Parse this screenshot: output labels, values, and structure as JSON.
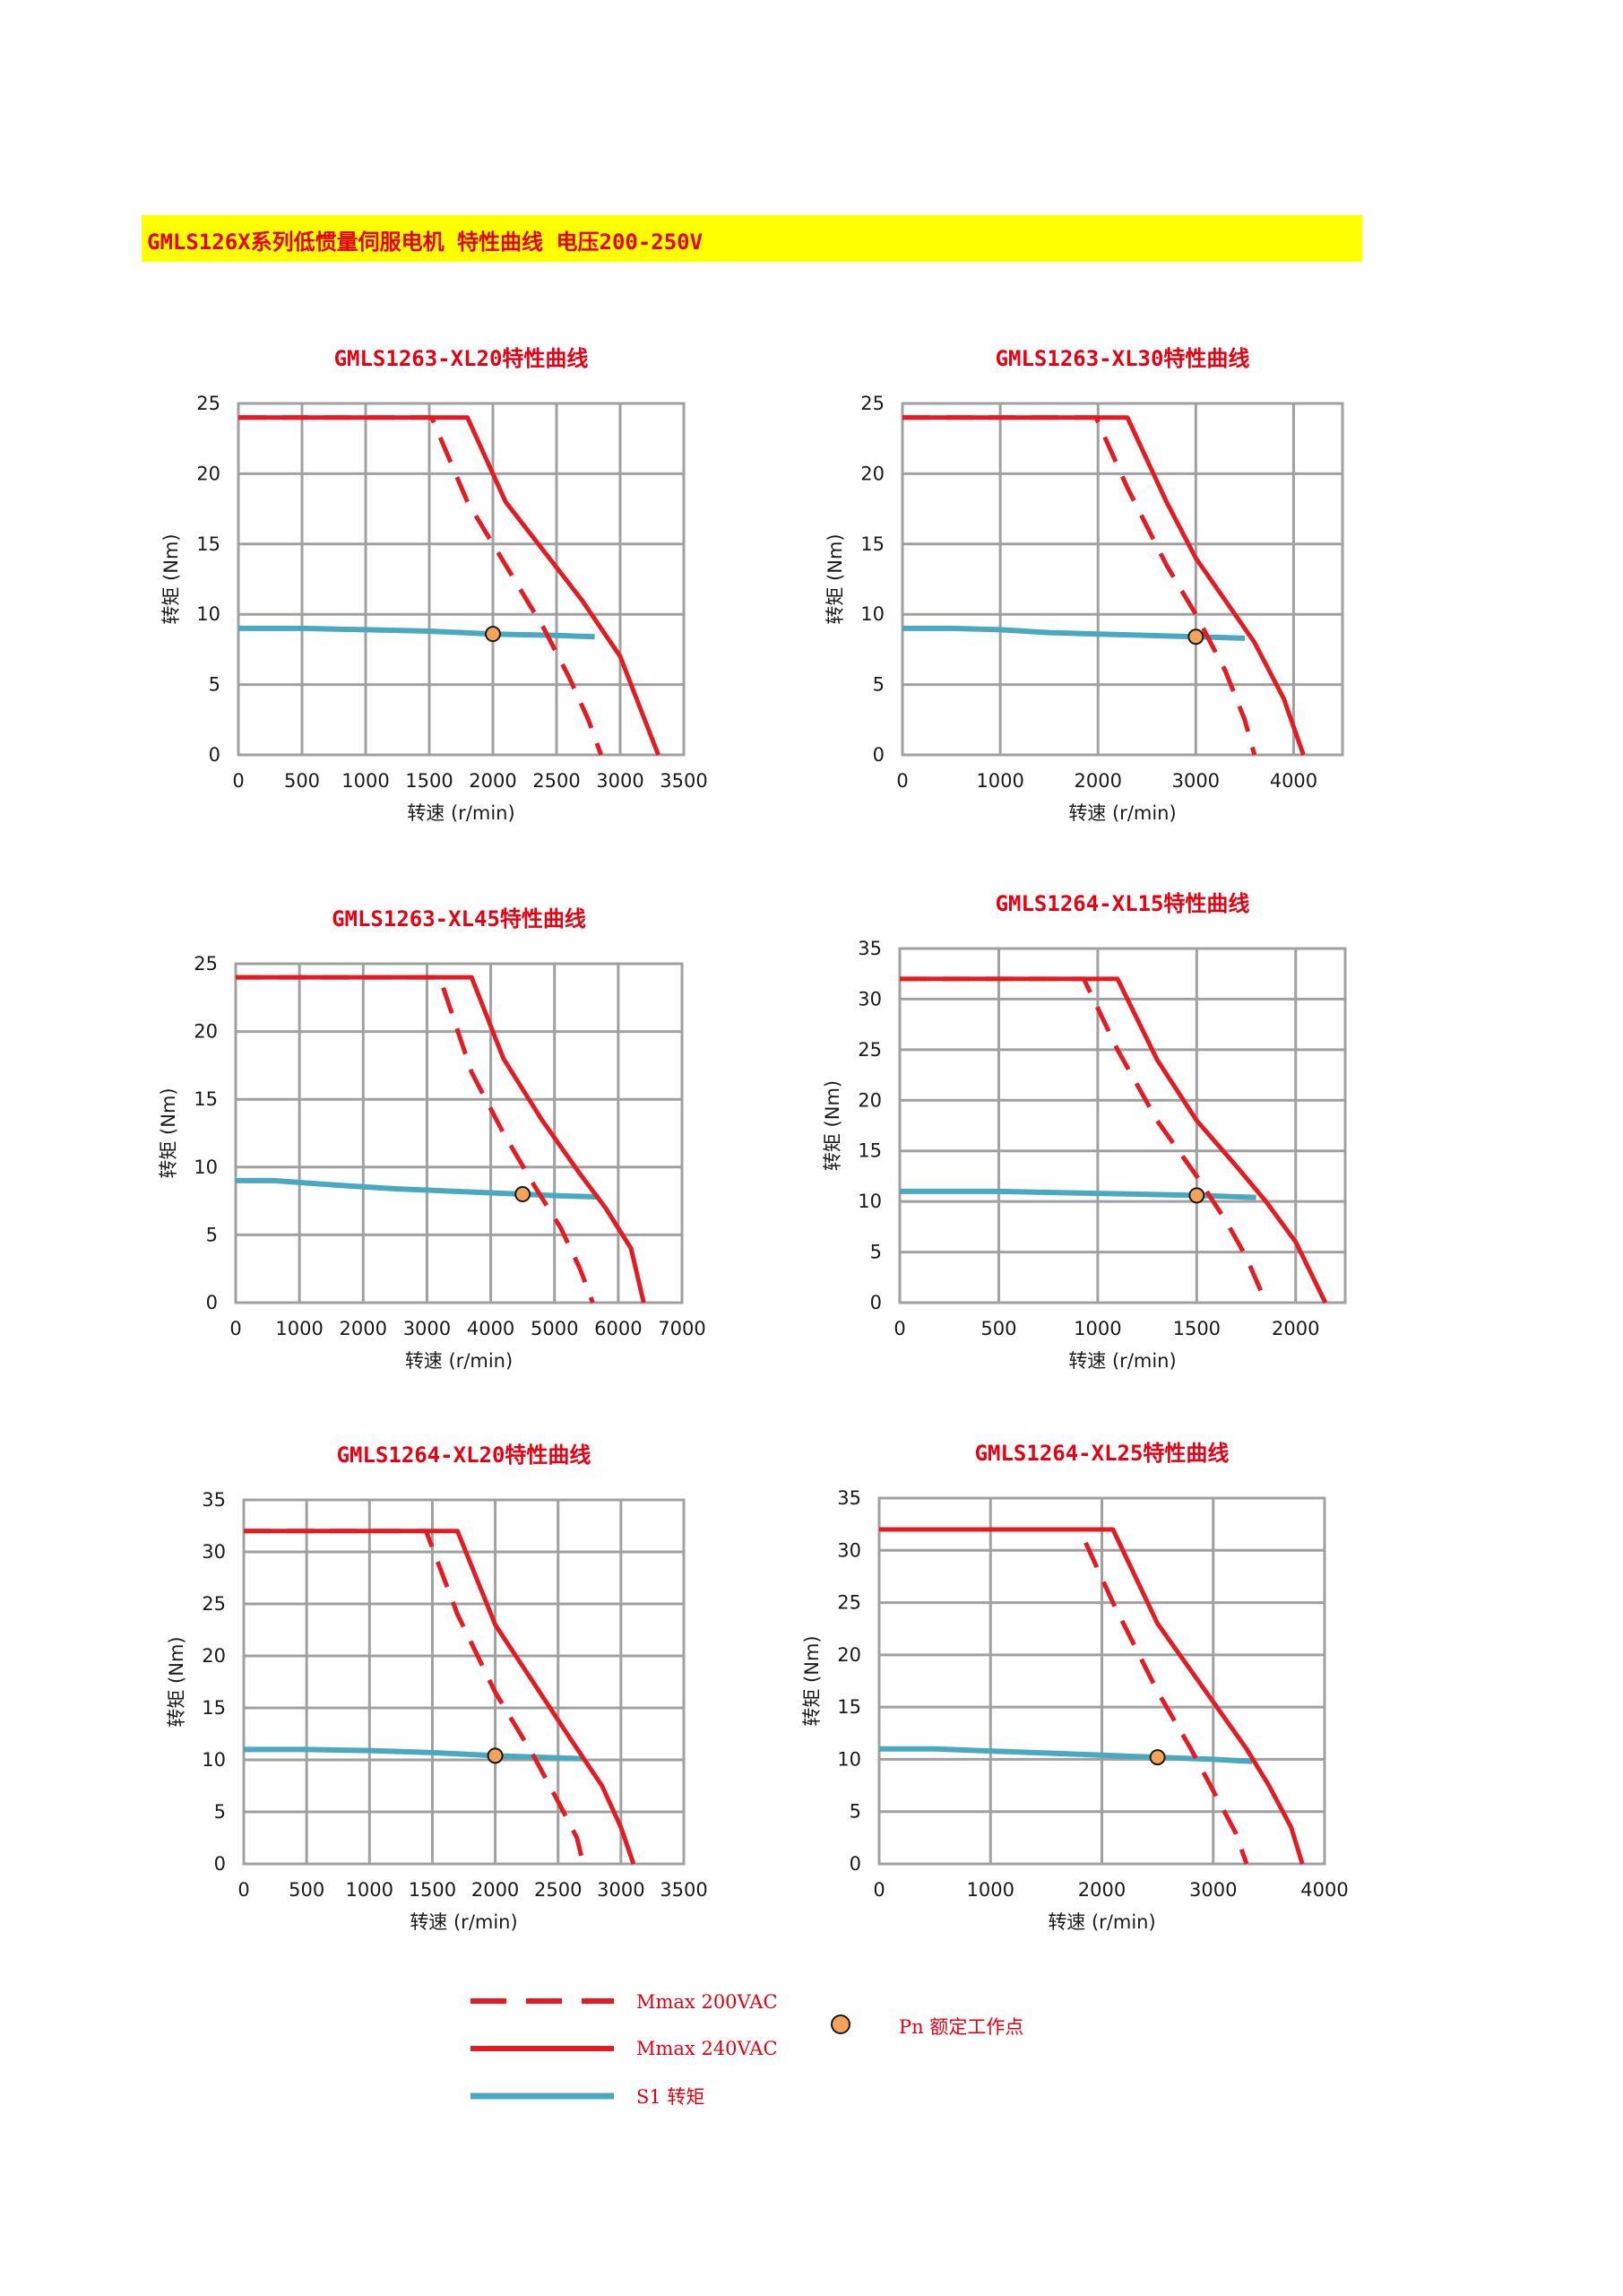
{
  "page_title": "GMLS126X系列低惯量伺服电机 特性曲线 电压200-250V",
  "colors": {
    "header_bg": "#ffff00",
    "title": "#e60012",
    "mmax": "#e31b23",
    "s1": "#4aa8c0",
    "pn_fill": "#f4a35a",
    "grid": "#a0a0a0"
  },
  "legend": {
    "mmax_200": "Mmax 200VAC",
    "mmax_240": "Mmax 240VAC",
    "s1": "S1 转矩",
    "pn": "Pn 额定工作点"
  },
  "chart_data": [
    {
      "type": "line",
      "title": "GMLS1263-XL20特性曲线",
      "xlabel": "转速 (r/min)",
      "ylabel": "转矩 (Nm)",
      "xlim": [
        0,
        3500
      ],
      "ylim": [
        0,
        25
      ],
      "xticks": [
        0,
        500,
        1000,
        1500,
        2000,
        2500,
        3000,
        3500
      ],
      "yticks": [
        0,
        5,
        10,
        15,
        20,
        25
      ],
      "grid": true,
      "series": [
        {
          "name": "Mmax 240VAC",
          "style": "solid",
          "x": [
            0,
            1800,
            2100,
            2400,
            2700,
            3000,
            3150,
            3300
          ],
          "y": [
            24,
            24,
            18,
            14.5,
            11,
            7,
            3.5,
            0
          ]
        },
        {
          "name": "Mmax 200VAC",
          "style": "dashed",
          "x": [
            0,
            1520,
            1800,
            2100,
            2400,
            2600,
            2750,
            2850
          ],
          "y": [
            24,
            24,
            18,
            13.5,
            9,
            5.5,
            2.5,
            0
          ]
        },
        {
          "name": "S1 转矩",
          "style": "solid",
          "x": [
            0,
            500,
            1000,
            1500,
            2000,
            2500,
            2800
          ],
          "y": [
            9,
            9,
            8.9,
            8.8,
            8.6,
            8.5,
            8.4
          ]
        }
      ],
      "rated_point": {
        "x": 2000,
        "y": 8.6
      }
    },
    {
      "type": "line",
      "title": "GMLS1263-XL30特性曲线",
      "xlabel": "转速 (r/min)",
      "ylabel": "转矩 (Nm)",
      "xlim": [
        0,
        4500
      ],
      "ylim": [
        0,
        25
      ],
      "xticks": [
        0,
        1000,
        2000,
        3000,
        4000
      ],
      "yticks": [
        0,
        5,
        10,
        15,
        20,
        25
      ],
      "grid": true,
      "series": [
        {
          "name": "Mmax 240VAC",
          "style": "solid",
          "x": [
            0,
            2300,
            2700,
            3000,
            3300,
            3600,
            3900,
            4100
          ],
          "y": [
            24,
            24,
            18,
            14,
            11,
            8,
            4,
            0
          ]
        },
        {
          "name": "Mmax 200VAC",
          "style": "dashed",
          "x": [
            0,
            1980,
            2300,
            2700,
            3000,
            3300,
            3500,
            3600
          ],
          "y": [
            24,
            24,
            19,
            13.5,
            10,
            6,
            2.5,
            0
          ]
        },
        {
          "name": "S1 转矩",
          "style": "solid",
          "x": [
            0,
            500,
            1000,
            1500,
            2000,
            2500,
            3000,
            3500
          ],
          "y": [
            9,
            9,
            8.9,
            8.7,
            8.6,
            8.5,
            8.4,
            8.3
          ]
        }
      ],
      "rated_point": {
        "x": 3000,
        "y": 8.4
      }
    },
    {
      "type": "line",
      "title": "GMLS1263-XL45特性曲线",
      "xlabel": "转速 (r/min)",
      "ylabel": "转矩 (Nm)",
      "xlim": [
        0,
        7000
      ],
      "ylim": [
        0,
        25
      ],
      "xticks": [
        0,
        1000,
        2000,
        3000,
        4000,
        5000,
        6000,
        7000
      ],
      "yticks": [
        0,
        5,
        10,
        15,
        20,
        25
      ],
      "grid": true,
      "series": [
        {
          "name": "Mmax 240VAC",
          "style": "solid",
          "x": [
            0,
            3700,
            4200,
            4800,
            5400,
            5800,
            6200,
            6400
          ],
          "y": [
            24,
            24,
            18,
            13.5,
            9.5,
            7,
            4,
            0
          ]
        },
        {
          "name": "Mmax 200VAC",
          "style": "dashed",
          "x": [
            0,
            3200,
            3700,
            4200,
            4700,
            5100,
            5400,
            5600
          ],
          "y": [
            24,
            24,
            17,
            12.5,
            8.5,
            5.5,
            2.5,
            0
          ]
        },
        {
          "name": "S1 转矩",
          "style": "solid",
          "x": [
            0,
            600,
            1500,
            2500,
            3500,
            4500,
            5000,
            5700
          ],
          "y": [
            9,
            9,
            8.7,
            8.4,
            8.2,
            8,
            7.9,
            7.8
          ]
        }
      ],
      "rated_point": {
        "x": 4500,
        "y": 8
      }
    },
    {
      "type": "line",
      "title": "GMLS1264-XL15特性曲线",
      "xlabel": "转速 (r/min)",
      "ylabel": "转矩 (Nm)",
      "xlim": [
        0,
        2250
      ],
      "ylim": [
        0,
        35
      ],
      "xticks": [
        0,
        500,
        1000,
        1500,
        2000
      ],
      "yticks": [
        0,
        5,
        10,
        15,
        20,
        25,
        30,
        35
      ],
      "grid": true,
      "series": [
        {
          "name": "Mmax 240VAC",
          "style": "solid",
          "x": [
            0,
            1100,
            1300,
            1500,
            1700,
            1850,
            2000,
            2150
          ],
          "y": [
            32,
            32,
            24,
            18,
            13.5,
            10,
            6,
            0
          ]
        },
        {
          "name": "Mmax 200VAC",
          "style": "dashed",
          "x": [
            0,
            930,
            1100,
            1300,
            1500,
            1650,
            1750,
            1850
          ],
          "y": [
            32,
            32,
            25,
            18,
            12.5,
            8,
            4.5,
            0
          ]
        },
        {
          "name": "S1 转矩",
          "style": "solid",
          "x": [
            0,
            500,
            1000,
            1500,
            1800
          ],
          "y": [
            11,
            11,
            10.8,
            10.6,
            10.4
          ]
        }
      ],
      "rated_point": {
        "x": 1500,
        "y": 10.6
      }
    },
    {
      "type": "line",
      "title": "GMLS1264-XL20特性曲线",
      "xlabel": "转速 (r/min)",
      "ylabel": "转矩 (Nm)",
      "xlim": [
        0,
        3500
      ],
      "ylim": [
        0,
        35
      ],
      "xticks": [
        0,
        500,
        1000,
        1500,
        2000,
        2500,
        3000,
        3500
      ],
      "yticks": [
        0,
        5,
        10,
        15,
        20,
        25,
        30,
        35
      ],
      "grid": true,
      "series": [
        {
          "name": "Mmax 240VAC",
          "style": "solid",
          "x": [
            0,
            1700,
            2000,
            2300,
            2600,
            2850,
            3000,
            3100
          ],
          "y": [
            32,
            32,
            23,
            17.5,
            12,
            7.5,
            3.5,
            0
          ]
        },
        {
          "name": "Mmax 200VAC",
          "style": "dashed",
          "x": [
            0,
            1450,
            1700,
            2000,
            2300,
            2500,
            2650,
            2700
          ],
          "y": [
            32,
            32,
            24,
            16.5,
            10.5,
            6,
            2.5,
            0
          ]
        },
        {
          "name": "S1 转矩",
          "style": "solid",
          "x": [
            0,
            500,
            1000,
            1500,
            2000,
            2500,
            2700
          ],
          "y": [
            11,
            11,
            10.9,
            10.7,
            10.4,
            10.2,
            10.1
          ]
        }
      ],
      "rated_point": {
        "x": 2000,
        "y": 10.4
      }
    },
    {
      "type": "line",
      "title": "GMLS1264-XL25特性曲线",
      "xlabel": "转速 (r/min)",
      "ylabel": "转矩 (Nm)",
      "xlim": [
        0,
        4000
      ],
      "ylim": [
        0,
        35
      ],
      "xticks": [
        0,
        1000,
        2000,
        3000,
        4000
      ],
      "yticks": [
        0,
        5,
        10,
        15,
        20,
        25,
        30,
        35
      ],
      "grid": true,
      "series": [
        {
          "name": "Mmax 240VAC",
          "style": "solid",
          "x": [
            0,
            2100,
            2500,
            2900,
            3300,
            3500,
            3700,
            3800
          ],
          "y": [
            32,
            32,
            23,
            17,
            11,
            7.5,
            3.5,
            0
          ]
        },
        {
          "name": "Mmax 200VAC",
          "style": "dashed",
          "x": [
            0,
            1800,
            2100,
            2500,
            2800,
            3000,
            3200,
            3300
          ],
          "y": [
            32,
            32,
            25,
            16.5,
            11,
            7,
            3,
            0
          ]
        },
        {
          "name": "S1 转矩",
          "style": "solid",
          "x": [
            0,
            500,
            1000,
            1500,
            2000,
            2500,
            3000,
            3350
          ],
          "y": [
            11,
            11,
            10.8,
            10.6,
            10.4,
            10.2,
            10,
            9.8
          ]
        }
      ],
      "rated_point": {
        "x": 2500,
        "y": 10.2
      }
    }
  ]
}
